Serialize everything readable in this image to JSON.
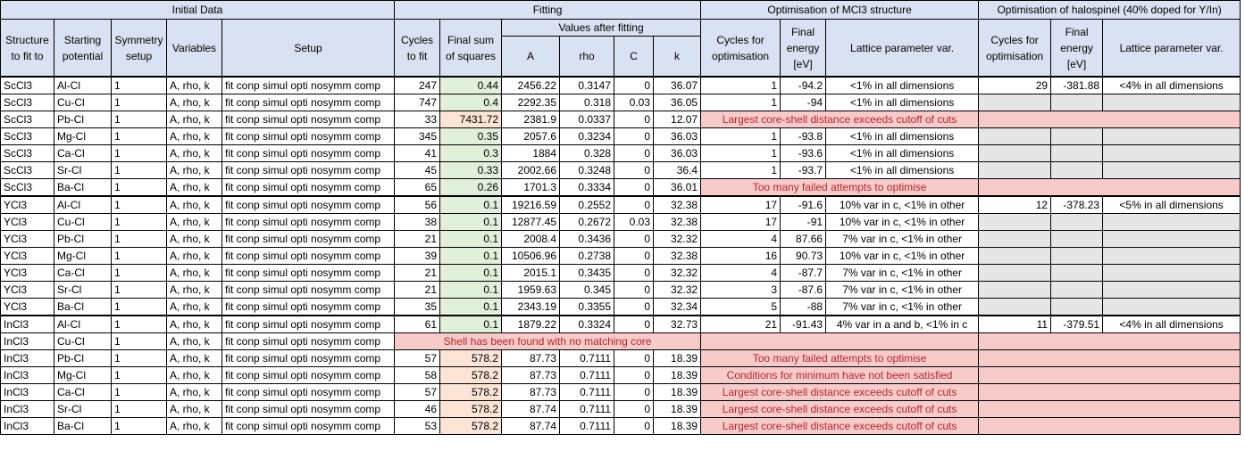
{
  "headers": {
    "initial_data": "Initial Data",
    "fitting": "Fitting",
    "optimisation_mcl3": "Optimisation of MCl3 structure",
    "optimisation_halospinel": "Optimisation of halospinel (40% doped for Y/In)",
    "values_after_fitting": "Values after fitting",
    "structure": "Structure to fit to",
    "starting_potential": "Starting potential",
    "symmetry_setup": "Symmetry setup",
    "variables": "Variables",
    "setup": "Setup",
    "cycles_to_fit": "Cycles to fit",
    "final_sum_of_squares": "Final sum of squares",
    "A": "A",
    "rho": "rho",
    "C": "C",
    "k": "k",
    "cycles_for_optimisation": "Cycles for optimisation",
    "final_energy": "Final energy [eV]",
    "lattice_parameter_var": "Lattice parameter var.",
    "cycles_for_optimisation_2": "Cycles for optimisation",
    "final_energy_2": "Final energy [eV]",
    "lattice_parameter_var_2": "Lattice parameter var."
  },
  "common": {
    "symmetry": "1",
    "variables": "A, rho, k",
    "setup": "fit conp simul opti nosymm comp"
  },
  "rows": [
    {
      "structure": "ScCl3",
      "potential": "Al-Cl",
      "symmetry": "1",
      "variables": "A, rho, k",
      "setup": "fit conp simul opti nosymm comp",
      "cycles": "247",
      "ssq": "0.44",
      "A": "2456.22",
      "rho": "0.3147",
      "C": "0",
      "k": "36.07",
      "opt_cycles": "1",
      "opt_energy": "-94.2",
      "opt_lattice": "<1% in all dimensions",
      "hs_cycles": "29",
      "hs_energy": "-381.88",
      "hs_lattice": "<4% in all dimensions"
    },
    {
      "structure": "ScCl3",
      "potential": "Cu-Cl",
      "symmetry": "1",
      "variables": "A, rho, k",
      "setup": "fit conp simul opti nosymm comp",
      "cycles": "747",
      "ssq": "0.4",
      "A": "2292.35",
      "rho": "0.318",
      "C": "0.03",
      "k": "36.05",
      "opt_cycles": "1",
      "opt_energy": "-94",
      "opt_lattice": "<1% in all dimensions"
    },
    {
      "structure": "ScCl3",
      "potential": "Pb-Cl",
      "symmetry": "1",
      "variables": "A, rho, k",
      "setup": "fit conp simul opti nosymm comp",
      "cycles": "33",
      "ssq": "7431.72",
      "A": "2381.9",
      "rho": "0.0337",
      "C": "0",
      "k": "12.07",
      "error": "Largest core-shell distance exceeds cutoff of cuts"
    },
    {
      "structure": "ScCl3",
      "potential": "Mg-Cl",
      "symmetry": "1",
      "variables": "A, rho, k",
      "setup": "fit conp simul opti nosymm comp",
      "cycles": "345",
      "ssq": "0.35",
      "A": "2057.6",
      "rho": "0.3234",
      "C": "0",
      "k": "36.03",
      "opt_cycles": "1",
      "opt_energy": "-93.8",
      "opt_lattice": "<1% in all dimensions"
    },
    {
      "structure": "ScCl3",
      "potential": "Ca-Cl",
      "symmetry": "1",
      "variables": "A, rho, k",
      "setup": "fit conp simul opti nosymm comp",
      "cycles": "41",
      "ssq": "0.3",
      "A": "1884",
      "rho": "0.328",
      "C": "0",
      "k": "36.03",
      "opt_cycles": "1",
      "opt_energy": "-93.6",
      "opt_lattice": "<1% in all dimensions"
    },
    {
      "structure": "ScCl3",
      "potential": "Sr-Cl",
      "symmetry": "1",
      "variables": "A, rho, k",
      "setup": "fit conp simul opti nosymm comp",
      "cycles": "45",
      "ssq": "0.33",
      "A": "2002.66",
      "rho": "0.3248",
      "C": "0",
      "k": "36.4",
      "opt_cycles": "1",
      "opt_energy": "-93.7",
      "opt_lattice": "<1% in all dimensions"
    },
    {
      "structure": "ScCl3",
      "potential": "Ba-Cl",
      "symmetry": "1",
      "variables": "A, rho, k",
      "setup": "fit conp simul opti nosymm comp",
      "cycles": "65",
      "ssq": "0.26",
      "A": "1701.3",
      "rho": "0.3334",
      "C": "0",
      "k": "36.01",
      "error": "Too many failed attempts to optimise"
    },
    {
      "structure": "YCl3",
      "potential": "Al-Cl",
      "symmetry": "1",
      "variables": "A, rho, k",
      "setup": "fit conp simul opti nosymm comp",
      "cycles": "56",
      "ssq": "0.1",
      "A": "19216.59",
      "rho": "0.2552",
      "C": "0",
      "k": "32.38",
      "opt_cycles": "17",
      "opt_energy": "-91.6",
      "opt_lattice": "10% var in c, <1% in other",
      "hs_cycles": "12",
      "hs_energy": "-378.23",
      "hs_lattice": "<5% in all dimensions"
    },
    {
      "structure": "YCl3",
      "potential": "Cu-Cl",
      "symmetry": "1",
      "variables": "A, rho, k",
      "setup": "fit conp simul opti nosymm comp",
      "cycles": "38",
      "ssq": "0.1",
      "A": "12877.45",
      "rho": "0.2672",
      "C": "0.03",
      "k": "32.38",
      "opt_cycles": "17",
      "opt_energy": "-91",
      "opt_lattice": "10% var in c, <1% in other"
    },
    {
      "structure": "YCl3",
      "potential": "Pb-Cl",
      "symmetry": "1",
      "variables": "A, rho, k",
      "setup": "fit conp simul opti nosymm comp",
      "cycles": "21",
      "ssq": "0.1",
      "A": "2008.4",
      "rho": "0.3436",
      "C": "0",
      "k": "32.32",
      "opt_cycles": "4",
      "opt_energy": "87.66",
      "opt_lattice": "7% var in c, <1% in other"
    },
    {
      "structure": "YCl3",
      "potential": "Mg-Cl",
      "symmetry": "1",
      "variables": "A, rho, k",
      "setup": "fit conp simul opti nosymm comp",
      "cycles": "39",
      "ssq": "0.1",
      "A": "10506.96",
      "rho": "0.2738",
      "C": "0",
      "k": "32.38",
      "opt_cycles": "16",
      "opt_energy": "90.73",
      "opt_lattice": "10% var in c, <1% in other"
    },
    {
      "structure": "YCl3",
      "potential": "Ca-Cl",
      "symmetry": "1",
      "variables": "A, rho, k",
      "setup": "fit conp simul opti nosymm comp",
      "cycles": "21",
      "ssq": "0.1",
      "A": "2015.1",
      "rho": "0.3435",
      "C": "0",
      "k": "32.32",
      "opt_cycles": "4",
      "opt_energy": "-87.7",
      "opt_lattice": "7% var in c, <1% in other"
    },
    {
      "structure": "YCl3",
      "potential": "Sr-Cl",
      "symmetry": "1",
      "variables": "A, rho, k",
      "setup": "fit conp simul opti nosymm comp",
      "cycles": "21",
      "ssq": "0.1",
      "A": "1959.63",
      "rho": "0.345",
      "C": "0",
      "k": "32.32",
      "opt_cycles": "3",
      "opt_energy": "-87.6",
      "opt_lattice": "7% var in c, <1% in other"
    },
    {
      "structure": "YCl3",
      "potential": "Ba-Cl",
      "symmetry": "1",
      "variables": "A, rho, k",
      "setup": "fit conp simul opti nosymm comp",
      "cycles": "35",
      "ssq": "0.1",
      "A": "2343.19",
      "rho": "0.3355",
      "C": "0",
      "k": "32.34",
      "opt_cycles": "5",
      "opt_energy": "-88",
      "opt_lattice": "7% var in c, <1% in other"
    },
    {
      "structure": "InCl3",
      "potential": "Al-Cl",
      "symmetry": "1",
      "variables": "A, rho, k",
      "setup": "fit conp simul opti nosymm comp",
      "cycles": "61",
      "ssq": "0.1",
      "A": "1879.22",
      "rho": "0.3324",
      "C": "0",
      "k": "32.73",
      "opt_cycles": "21",
      "opt_energy": "-91.43",
      "opt_lattice": "4% var in a and b, <1% in c",
      "hs_cycles": "11",
      "hs_energy": "-379.51",
      "hs_lattice": "<4% in all dimensions"
    },
    {
      "structure": "InCl3",
      "potential": "Cu-Cl",
      "symmetry": "1",
      "variables": "A, rho, k",
      "setup": "fit conp simul opti nosymm comp",
      "fit_error": "Shell has been found with no matching core"
    },
    {
      "structure": "InCl3",
      "potential": "Pb-Cl",
      "symmetry": "1",
      "variables": "A, rho, k",
      "setup": "fit conp simul opti nosymm comp",
      "cycles": "57",
      "ssq": "578.2",
      "A": "87.73",
      "rho": "0.7111",
      "C": "0",
      "k": "18.39",
      "error": "Too many failed attempts to optimise"
    },
    {
      "structure": "InCl3",
      "potential": "Mg-Cl",
      "symmetry": "1",
      "variables": "A, rho, k",
      "setup": "fit conp simul opti nosymm comp",
      "cycles": "58",
      "ssq": "578.2",
      "A": "87.73",
      "rho": "0.7111",
      "C": "0",
      "k": "18.39",
      "error": "Conditions for minimum have not been satisfied"
    },
    {
      "structure": "InCl3",
      "potential": "Ca-Cl",
      "symmetry": "1",
      "variables": "A, rho, k",
      "setup": "fit conp simul opti nosymm comp",
      "cycles": "57",
      "ssq": "578.2",
      "A": "87.73",
      "rho": "0.7111",
      "C": "0",
      "k": "18.39",
      "error": "Largest core-shell distance exceeds cutoff of cuts"
    },
    {
      "structure": "InCl3",
      "potential": "Sr-Cl",
      "symmetry": "1",
      "variables": "A, rho, k",
      "setup": "fit conp simul opti nosymm comp",
      "cycles": "46",
      "ssq": "578.2",
      "A": "87.74",
      "rho": "0.7111",
      "C": "0",
      "k": "18.39",
      "error": "Largest core-shell distance exceeds cutoff of cuts"
    },
    {
      "structure": "InCl3",
      "potential": "Ba-Cl",
      "symmetry": "1",
      "variables": "A, rho, k",
      "setup": "fit conp simul opti nosymm comp",
      "cycles": "53",
      "ssq": "578.2",
      "A": "87.74",
      "rho": "0.7111",
      "C": "0",
      "k": "18.39",
      "error": "Largest core-shell distance exceeds cutoff of cuts"
    }
  ],
  "colors": {
    "header_bg": "#d9e1f2",
    "fit_good_bg": "#e2efda",
    "fit_bad_bg": "#fce4d6",
    "error_bg": "#f8cbcb",
    "error_text": "#b3262d",
    "empty_bg": "#e7e6e6"
  }
}
